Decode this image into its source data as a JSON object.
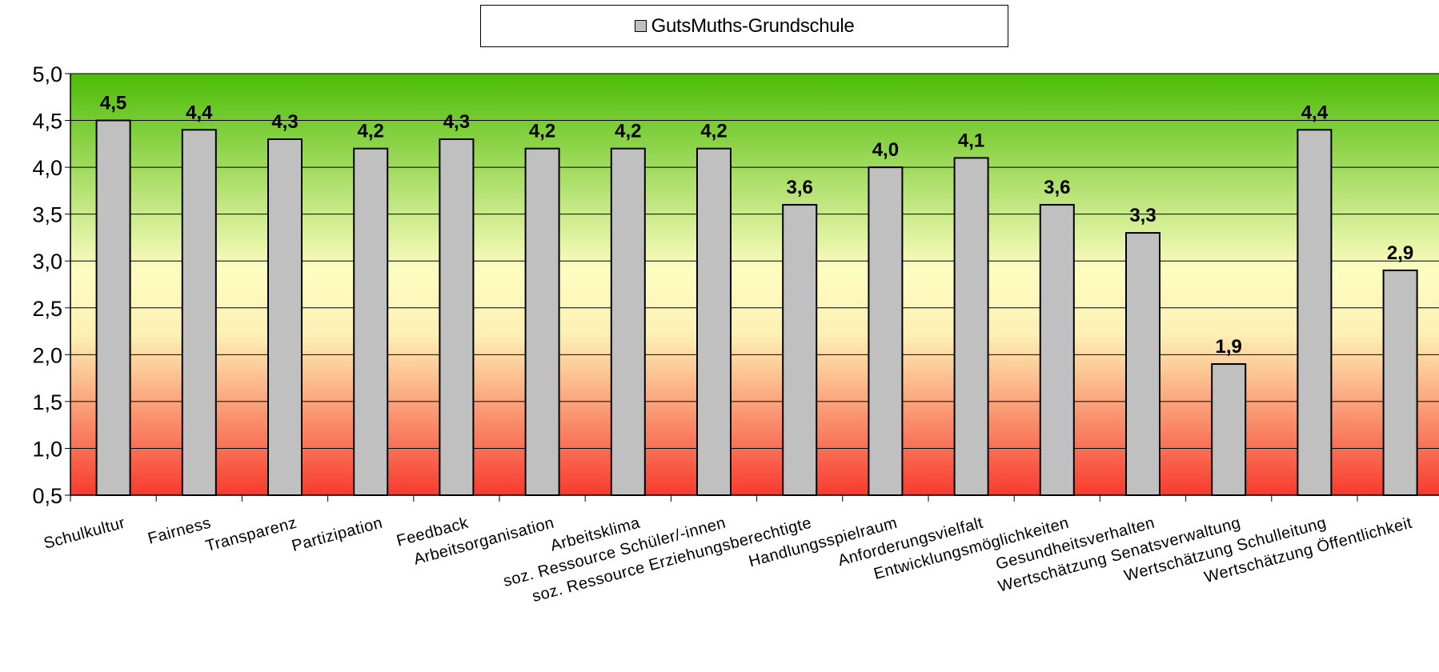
{
  "chart_data": {
    "type": "bar",
    "legend": {
      "entries": [
        "GutsMuths-Grundschule"
      ],
      "position": "top"
    },
    "categories": [
      "Schulkultur",
      "Fairness",
      "Transparenz",
      "Partizipation",
      "Feedback",
      "Arbeitsorganisation",
      "Arbeitsklima",
      "soz. Ressource Schüler/-innen",
      "soz. Ressource Erziehungsberechtigte",
      "Handlungsspielraum",
      "Anforderungsvielfalt",
      "Entwicklungsmöglichkeiten",
      "Gesundheitsverhalten",
      "Wertschätzung Senatsverwaltung",
      "Wertschätzung Schulleitung",
      "Wertschätzung Öffentlichkeit"
    ],
    "series": [
      {
        "name": "GutsMuths-Grundschule",
        "values": [
          4.5,
          4.4,
          4.3,
          4.2,
          4.3,
          4.2,
          4.2,
          4.2,
          3.6,
          4.0,
          4.1,
          3.6,
          3.3,
          1.9,
          4.4,
          2.9
        ],
        "data_labels": [
          "4,5",
          "4,4",
          "4,3",
          "4,2",
          "4,3",
          "4,2",
          "4,2",
          "4,2",
          "3,6",
          "4,0",
          "4,1",
          "3,6",
          "3,3",
          "1,9",
          "4,4",
          "2,9"
        ],
        "color": "#c0c0c0"
      }
    ],
    "ylim": [
      0.5,
      5.0
    ],
    "y_ticks": [
      0.5,
      1.0,
      1.5,
      2.0,
      2.5,
      3.0,
      3.5,
      4.0,
      4.5,
      5.0
    ],
    "y_tick_labels": [
      "0,5",
      "1,0",
      "1,5",
      "2,0",
      "2,5",
      "3,0",
      "3,5",
      "4,0",
      "4,5",
      "5,0"
    ],
    "grid": true,
    "background_gradient": [
      "#4cbc06",
      "#fefdc0",
      "#f83a2e"
    ],
    "xlabel": "",
    "ylabel": "",
    "title": ""
  }
}
